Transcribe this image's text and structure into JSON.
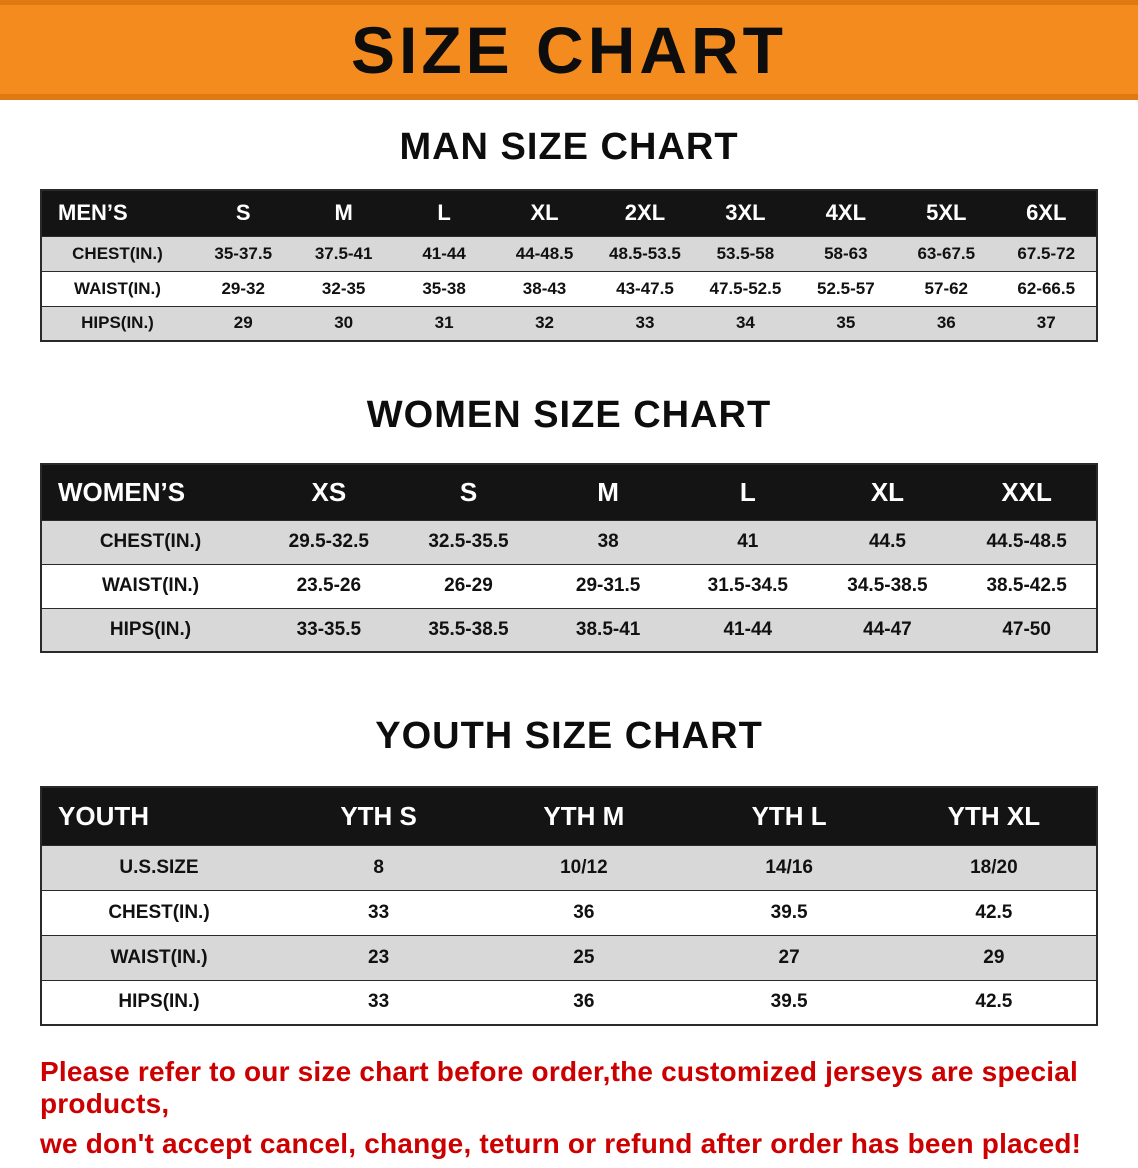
{
  "colors": {
    "banner-bg": "#F38B1F",
    "banner-edge": "#DE7A11",
    "header-bg": "#141414",
    "row-shade": "#D8D8D8",
    "disclaimer-red": "#CC0000"
  },
  "banner": {
    "title": "SIZE CHART"
  },
  "tables": [
    {
      "heading": "MAN SIZE CHART",
      "header_label": "MEN’S",
      "columns": [
        "S",
        "M",
        "L",
        "XL",
        "2XL",
        "3XL",
        "4XL",
        "5XL",
        "6XL"
      ],
      "rows": [
        {
          "label": "CHEST(IN.)",
          "values": [
            "35-37.5",
            "37.5-41",
            "41-44",
            "44-48.5",
            "48.5-53.5",
            "53.5-58",
            "58-63",
            "63-67.5",
            "67.5-72"
          ]
        },
        {
          "label": "WAIST(IN.)",
          "values": [
            "29-32",
            "32-35",
            "35-38",
            "38-43",
            "43-47.5",
            "47.5-52.5",
            "52.5-57",
            "57-62",
            "62-66.5"
          ]
        },
        {
          "label": "HIPS(IN.)",
          "values": [
            "29",
            "30",
            "31",
            "32",
            "33",
            "34",
            "35",
            "36",
            "37"
          ]
        }
      ]
    },
    {
      "heading": "WOMEN SIZE CHART",
      "header_label": "WOMEN’S",
      "columns": [
        "XS",
        "S",
        "M",
        "L",
        "XL",
        "XXL"
      ],
      "rows": [
        {
          "label": "CHEST(IN.)",
          "values": [
            "29.5-32.5",
            "32.5-35.5",
            "38",
            "41",
            "44.5",
            "44.5-48.5"
          ]
        },
        {
          "label": "WAIST(IN.)",
          "values": [
            "23.5-26",
            "26-29",
            "29-31.5",
            "31.5-34.5",
            "34.5-38.5",
            "38.5-42.5"
          ]
        },
        {
          "label": "HIPS(IN.)",
          "values": [
            "33-35.5",
            "35.5-38.5",
            "38.5-41",
            "41-44",
            "44-47",
            "47-50"
          ]
        }
      ]
    },
    {
      "heading": "YOUTH SIZE CHART",
      "header_label": "YOUTH",
      "columns": [
        "YTH S",
        "YTH M",
        "YTH L",
        "YTH XL"
      ],
      "rows": [
        {
          "label": "U.S.SIZE",
          "values": [
            "8",
            "10/12",
            "14/16",
            "18/20"
          ]
        },
        {
          "label": "CHEST(IN.)",
          "values": [
            "33",
            "36",
            "39.5",
            "42.5"
          ]
        },
        {
          "label": "WAIST(IN.)",
          "values": [
            "23",
            "25",
            "27",
            "29"
          ]
        },
        {
          "label": "HIPS(IN.)",
          "values": [
            "33",
            "36",
            "39.5",
            "42.5"
          ]
        }
      ]
    }
  ],
  "disclaimer": {
    "line1": "Please refer to our size chart before order,the customized jerseys are special products,",
    "line2": "we don't accept cancel, change, teturn or refund after order has been placed!"
  }
}
